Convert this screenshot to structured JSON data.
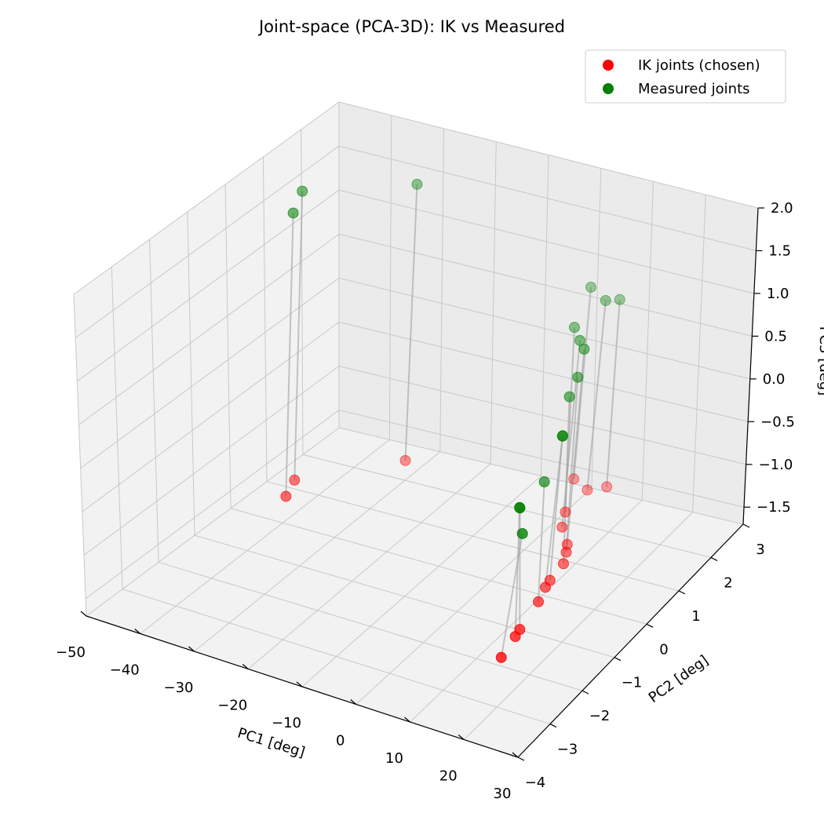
{
  "chart_data": {
    "type": "scatter",
    "projection": "3d",
    "title": "Joint-space (PCA-3D): IK vs Measured",
    "xlabel": "PC1 [deg]",
    "ylabel": "PC2 [deg]",
    "zlabel": "PC3 [deg]",
    "xlim": [
      -50,
      30
    ],
    "ylim": [
      -4,
      3
    ],
    "zlim": [
      -1.7,
      2.0
    ],
    "x_ticks": [
      "−50",
      "−40",
      "−30",
      "−20",
      "−10",
      "0",
      "10",
      "20",
      "30"
    ],
    "y_ticks": [
      "−4",
      "−3",
      "−2",
      "−1",
      "0",
      "1",
      "2",
      "3"
    ],
    "z_ticks": [
      "−1.5",
      "−1.0",
      "−0.5",
      "0.0",
      "0.5",
      "1.0",
      "1.5",
      "2.0"
    ],
    "grid": true,
    "legend_position": "top-right",
    "connector_color": "#a0a0a0",
    "series": [
      {
        "name": "IK joints (chosen)",
        "color": "#ff0000",
        "points": [
          [
            -44.6,
            1.0,
            -1.6
          ],
          [
            -42.8,
            0.5,
            -1.6
          ],
          [
            -32.0,
            2.3,
            -1.6
          ],
          [
            -2.9,
            2.9,
            -1.6
          ],
          [
            1.1,
            2.7,
            -1.6
          ],
          [
            3.6,
            2.9,
            -1.6
          ],
          [
            1.4,
            2.0,
            -1.6
          ],
          [
            3.4,
            1.6,
            -1.6
          ],
          [
            7.0,
            1.2,
            -1.6
          ],
          [
            8.1,
            1.0,
            -1.6
          ],
          [
            9.5,
            0.7,
            -1.6
          ],
          [
            10.1,
            0.2,
            -1.6
          ],
          [
            10.5,
            0.0,
            -1.6
          ],
          [
            11.7,
            -0.4,
            -1.6
          ],
          [
            13.2,
            -1.2,
            -1.6
          ],
          [
            13.6,
            -1.4,
            -1.6
          ],
          [
            14.7,
            -2.0,
            -1.6
          ]
        ]
      },
      {
        "name": "Measured joints",
        "color": "#008000",
        "points": [
          [
            -42.7,
            1.0,
            1.73
          ],
          [
            -40.9,
            0.5,
            1.67
          ],
          [
            -30.1,
            2.3,
            1.59
          ],
          [
            -0.6,
            2.9,
            0.65
          ],
          [
            3.6,
            2.7,
            0.63
          ],
          [
            5.0,
            2.9,
            0.59
          ],
          [
            2.3,
            2.0,
            0.55
          ],
          [
            6.0,
            1.6,
            0.6
          ],
          [
            9.4,
            1.2,
            0.7
          ],
          [
            9.6,
            1.0,
            0.45
          ],
          [
            10.0,
            0.7,
            0.34
          ],
          [
            12.0,
            0.2,
            0.1
          ],
          [
            13.3,
            0.0,
            0.2
          ],
          [
            12.5,
            -0.4,
            -0.2
          ],
          [
            13.0,
            -1.2,
            -0.2
          ],
          [
            14.2,
            -1.4,
            -0.1
          ],
          [
            18.5,
            -2.0,
            -0.1
          ]
        ]
      }
    ]
  }
}
